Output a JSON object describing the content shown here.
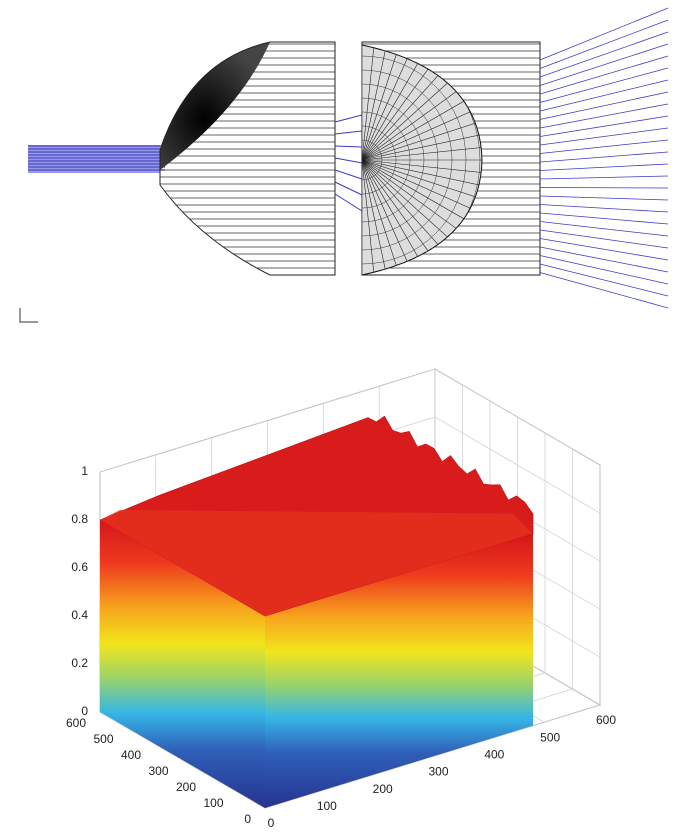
{
  "chart_data": {
    "type": "surface3d",
    "xlim": [
      0,
      600
    ],
    "xticks": [
      0,
      100,
      200,
      300,
      400,
      500,
      600
    ],
    "ylim": [
      0,
      600
    ],
    "yticks": [
      0,
      100,
      200,
      300,
      400,
      500,
      600
    ],
    "zlim": [
      0,
      1
    ],
    "zticks": [
      0,
      0.2,
      0.4,
      0.6,
      0.8,
      1
    ],
    "grid": true
  }
}
